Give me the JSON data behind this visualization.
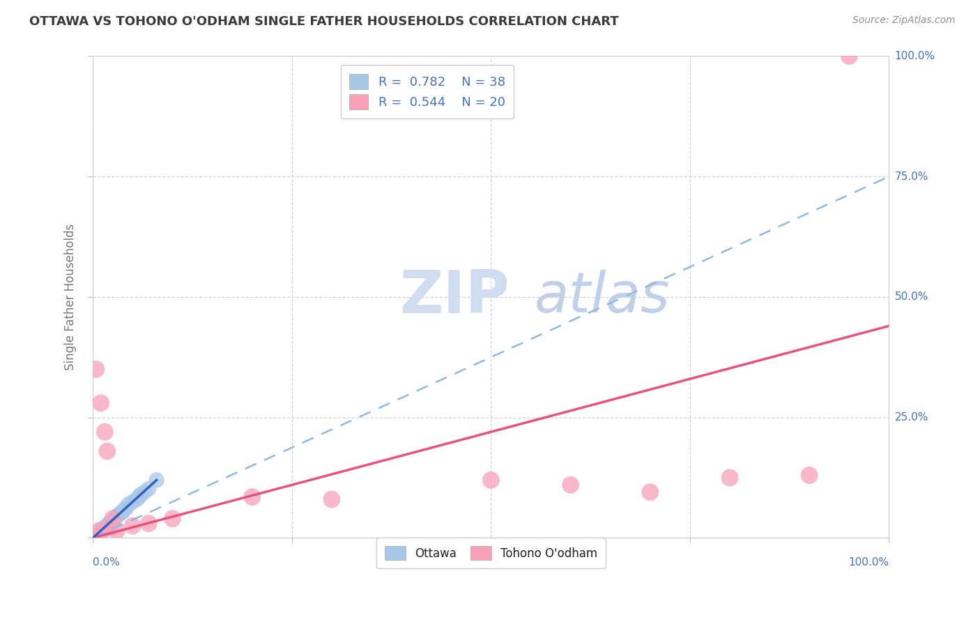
{
  "title": "OTTAWA VS TOHONO O'ODHAM SINGLE FATHER HOUSEHOLDS CORRELATION CHART",
  "source": "Source: ZipAtlas.com",
  "ylabel": "Single Father Households",
  "ottawa_R": 0.782,
  "ottawa_N": 38,
  "tohono_R": 0.544,
  "tohono_N": 20,
  "ottawa_scatter_color": "#a8c8e8",
  "tohono_scatter_color": "#f8a0b8",
  "ottawa_line_dashed_color": "#90b8e0",
  "ottawa_line_solid_color": "#3060c0",
  "tohono_line_color": "#e85080",
  "legend_text_color": "#4472c4",
  "title_color": "#3a3a3a",
  "source_color": "#909090",
  "background_color": "#ffffff",
  "grid_color": "#c8d4e8",
  "watermark_zip_color": "#d0dcf0",
  "watermark_atlas_color": "#c0d0e8",
  "ylabel_color": "#777777",
  "tick_label_color": "#4472c4",
  "ottawa_x": [
    0.3,
    0.5,
    0.6,
    0.7,
    0.8,
    0.9,
    1.0,
    1.0,
    1.1,
    1.2,
    1.3,
    1.4,
    1.5,
    1.6,
    1.8,
    1.9,
    2.0,
    2.1,
    2.2,
    2.4,
    2.5,
    2.6,
    2.8,
    3.0,
    3.2,
    3.4,
    3.5,
    3.8,
    4.0,
    4.2,
    4.5,
    5.0,
    5.5,
    5.8,
    6.0,
    6.5,
    7.0,
    8.0
  ],
  "ottawa_y": [
    0.2,
    0.4,
    0.5,
    0.6,
    0.8,
    0.9,
    1.0,
    1.5,
    1.2,
    1.5,
    1.8,
    2.0,
    2.2,
    2.2,
    2.6,
    2.7,
    2.8,
    3.0,
    3.2,
    3.5,
    3.5,
    3.7,
    4.0,
    4.5,
    4.8,
    5.0,
    5.2,
    5.5,
    6.0,
    6.2,
    7.0,
    7.5,
    8.0,
    8.5,
    9.0,
    9.5,
    10.2,
    12.0
  ],
  "tohono_x": [
    0.4,
    0.5,
    0.8,
    1.0,
    1.5,
    1.8,
    2.0,
    2.5,
    3.0,
    5.0,
    50.0,
    60.0,
    70.0,
    80.0,
    90.0,
    95.0,
    7.0,
    10.0,
    20.0,
    30.0
  ],
  "tohono_y": [
    35.0,
    0.5,
    1.5,
    28.0,
    22.0,
    18.0,
    2.0,
    4.0,
    1.5,
    2.5,
    12.0,
    11.0,
    9.5,
    12.5,
    13.0,
    100.0,
    3.0,
    4.0,
    8.5,
    8.0
  ],
  "ottawa_dashed_slope": 0.75,
  "ottawa_solid_x0": 0.0,
  "ottawa_solid_x1": 8.0,
  "ottawa_solid_slope": 1.5,
  "tohono_solid_slope": 0.44,
  "xlim": [
    0,
    100
  ],
  "ylim": [
    0,
    100
  ],
  "xticks": [
    0,
    25,
    50,
    75,
    100
  ],
  "yticks": [
    0,
    25,
    50,
    75,
    100
  ],
  "ytick_labels": [
    "0.0%",
    "25.0%",
    "50.0%",
    "75.0%",
    "100.0%"
  ]
}
